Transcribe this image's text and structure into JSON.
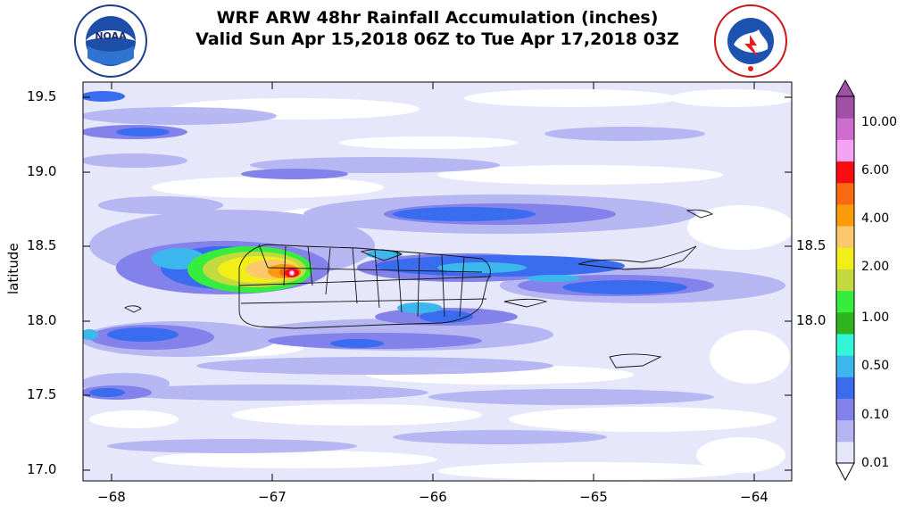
{
  "header": {
    "title_line1": "WRF ARW 48hr Rainfall Accumulation (inches)",
    "title_line2": "Valid Sun Apr 15,2018 06Z to Tue Apr 17,2018 03Z"
  },
  "logos": {
    "left": {
      "text": "NOAA",
      "ring_text": "NATIONAL OCEANIC AND ATMOSPHERIC ADMINISTRATION · U.S. DEPARTMENT OF COMMERCE"
    },
    "right": {
      "ring_text": "NATIONAL WEATHER SERVICE"
    }
  },
  "axes": {
    "ylabel": "latitude",
    "yticks": [
      "19.5",
      "19.0",
      "18.5",
      "18.0",
      "17.5",
      "17.0"
    ],
    "yticks_right": [
      "18.5",
      "18.0"
    ],
    "xticks": [
      "−68",
      "−67",
      "−66",
      "−65",
      "−64"
    ]
  },
  "colorbar": {
    "labels": [
      "10.00",
      "6.00",
      "4.00",
      "2.00",
      "1.00",
      "0.50",
      "0.10",
      "0.01"
    ],
    "colors": [
      "#e7e7fb",
      "#b4b4f2",
      "#8282ea",
      "#3a6cf0",
      "#3cb7ee",
      "#31f7d6",
      "#2fb31f",
      "#36ec3c",
      "#c2d940",
      "#f2ee17",
      "#fbc86d",
      "#fb9b0c",
      "#fb6812",
      "#f90d10",
      "#f6a3f3",
      "#cf6cd0",
      "#a24fa8"
    ]
  },
  "chart_data": {
    "type": "heatmap",
    "title": "WRF ARW 48hr Rainfall Accumulation (inches)",
    "subtitle": "Valid Sun Apr 15,2018 06Z to Tue Apr 17,2018 03Z",
    "xlabel": "",
    "ylabel": "latitude",
    "xlim": [
      -68.2,
      -63.8
    ],
    "ylim": [
      16.92,
      19.61
    ],
    "levels": [
      0.01,
      0.1,
      0.5,
      1.0,
      2.0,
      4.0,
      6.0,
      10.0
    ],
    "features": [
      {
        "name": "max",
        "x": -66.9,
        "y": 18.33,
        "value": 10.0
      },
      {
        "name": "core",
        "x": -67.3,
        "y": 18.38,
        "value": 2.0
      }
    ]
  }
}
